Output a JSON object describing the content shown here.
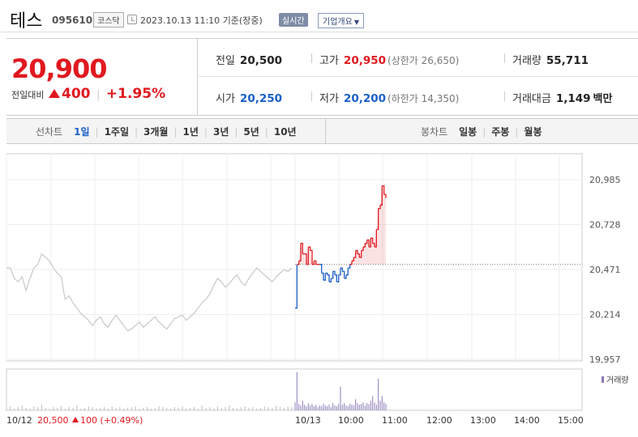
{
  "header": {
    "stock_name": "테스",
    "stock_code": "095610",
    "market": "코스닥",
    "datetime": "2023.10.13 11:10 기준(장중)",
    "realtime_label": "실시간",
    "company_label": "기업개요"
  },
  "price": {
    "current": "20,900",
    "change_label": "전일대비",
    "change_amount": "400",
    "change_percent": "+1.95%"
  },
  "stats": {
    "prev_label": "전일",
    "prev_value": "20,500",
    "high_label": "고가",
    "high_value": "20,950",
    "upper_limit": "(상한가 26,650)",
    "volume_label": "거래량",
    "volume_value": "55,711",
    "open_label": "시가",
    "open_value": "20,250",
    "low_label": "저가",
    "low_value": "20,200",
    "lower_limit": "(하한가 14,350)",
    "amount_label": "거래대금",
    "amount_value": "1,149",
    "amount_unit": "백만"
  },
  "tabs": {
    "line_head": "선차트",
    "line_items": [
      "1일",
      "1주일",
      "3개월",
      "1년",
      "3년",
      "5년",
      "10년"
    ],
    "candle_head": "봉차트",
    "candle_items": [
      "일봉",
      "주봉",
      "월봉"
    ]
  },
  "colors": {
    "up": "#e0191f",
    "down": "#1a5fc8",
    "prev_day": "#c8c8c8",
    "volume": "#8a7ab8"
  },
  "chart_data": {
    "type": "line",
    "y_ticks": [
      "20,985",
      "20,728",
      "20,471",
      "20,214",
      "19,957"
    ],
    "ylim": [
      19957,
      20985
    ],
    "baseline": 20500,
    "x_ticks": [
      "10/12",
      "10/13",
      "10:00",
      "11:00",
      "12:00",
      "13:00",
      "14:00",
      "15:00"
    ],
    "prev_day_label": "20,500",
    "prev_day_change": "100 (+0.49%)",
    "volume_legend": "거래량",
    "series": [
      {
        "name": "prev_day",
        "values": [
          20480,
          20480,
          20420,
          20400,
          20430,
          20350,
          20420,
          20480,
          20500,
          20560,
          20540,
          20520,
          20480,
          20450,
          20430,
          20300,
          20320,
          20280,
          20250,
          20220,
          20200,
          20180,
          20150,
          20180,
          20200,
          20160,
          20140,
          20180,
          20210,
          20180,
          20150,
          20120,
          20130,
          20150,
          20170,
          20140,
          20160,
          20180,
          20200,
          20170,
          20150,
          20130,
          20160,
          20190,
          20200,
          20210,
          20180,
          20200,
          20220,
          20250,
          20280,
          20300,
          20330,
          20380,
          20420,
          20400,
          20370,
          20390,
          20420,
          20440,
          20400,
          20380,
          20420,
          20450,
          20480,
          20460,
          20440,
          20420,
          20400,
          20430,
          20450,
          20470,
          20460,
          20480
        ]
      },
      {
        "name": "today",
        "values": [
          20250,
          20500,
          20520,
          20620,
          20560,
          20560,
          20500,
          20600,
          20580,
          20500,
          20520,
          20500,
          20500,
          20500,
          20450,
          20410,
          20450,
          20440,
          20400,
          20420,
          20460,
          20440,
          20400,
          20440,
          20480,
          20460,
          20420,
          20440,
          20480,
          20500,
          20520,
          20540,
          20580,
          20560,
          20540,
          20580,
          20600,
          20620,
          20640,
          20600,
          20650,
          20620,
          20600,
          20700,
          20820,
          20840,
          20950,
          20900,
          20880
        ]
      }
    ],
    "volume_prev": [
      3,
      5,
      2,
      4,
      6,
      3,
      2,
      5,
      4,
      7,
      3,
      2,
      4,
      3,
      5,
      2,
      4,
      3,
      6,
      2,
      3,
      5,
      4,
      2,
      3,
      4,
      2,
      5,
      3,
      4,
      2,
      3,
      4,
      5,
      2,
      3,
      4,
      2,
      3,
      5,
      4,
      3,
      2,
      4,
      3,
      5,
      2,
      3,
      4,
      2,
      6,
      3,
      4,
      2,
      5,
      3,
      4,
      6,
      3,
      2,
      4,
      5,
      3,
      4,
      2,
      3,
      5,
      4,
      3,
      6,
      4,
      3,
      5,
      4
    ],
    "volume_today": [
      10,
      48,
      8,
      6,
      12,
      7,
      5,
      9,
      6,
      8,
      5,
      7,
      4,
      6,
      5,
      8,
      6,
      5,
      7,
      4,
      9,
      6,
      5,
      8,
      30,
      7,
      9,
      6,
      5,
      8,
      7,
      6,
      14,
      9,
      7,
      8,
      10,
      6,
      9,
      8,
      12,
      18,
      10,
      7,
      40,
      12,
      18,
      10,
      8
    ]
  }
}
